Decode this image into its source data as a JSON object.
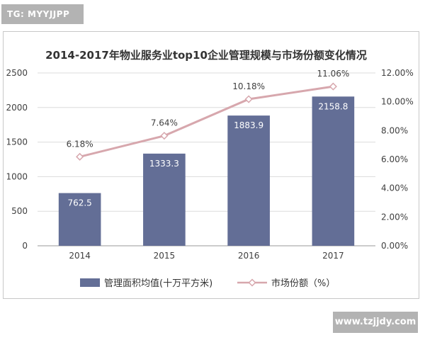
{
  "watermark_tag": "TG: MYYJJPP",
  "site_badge": "www.tzjjdy.com",
  "chart_data": {
    "type": "bar",
    "title": "2014-2017年物业服务业top10企业管理规模与市场份额变化情况",
    "categories": [
      "2014",
      "2015",
      "2016",
      "2017"
    ],
    "series": [
      {
        "name": "管理面积均值(十万平方米)",
        "type": "bar",
        "axis": "left",
        "color": "#636e96",
        "values": [
          762.5,
          1333.3,
          1883.9,
          2158.8
        ],
        "labels": [
          "762.5",
          "1333.3",
          "1883.9",
          "2158.8"
        ]
      },
      {
        "name": "市场份额（%）",
        "type": "line",
        "axis": "right",
        "color": "#d7a7ad",
        "values": [
          6.18,
          7.64,
          10.18,
          11.06
        ],
        "labels": [
          "6.18%",
          "7.64%",
          "10.18%",
          "11.06%"
        ]
      }
    ],
    "y_left": {
      "ylim": [
        0,
        2500
      ],
      "ticks": [
        "0",
        "500",
        "1000",
        "1500",
        "2000",
        "2500"
      ]
    },
    "y_right": {
      "ylim": [
        0,
        12
      ],
      "ticks": [
        "0.00%",
        "2.00%",
        "4.00%",
        "6.00%",
        "8.00%",
        "10.00%",
        "12.00%"
      ]
    },
    "grid": true,
    "legend_position": "bottom"
  }
}
